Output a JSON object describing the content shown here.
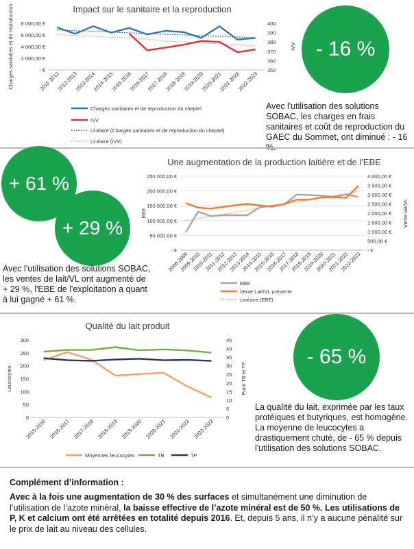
{
  "colors": {
    "green": "#1aa24f",
    "blue": "#2e75b6",
    "red": "#e03131",
    "grey": "#a6a6a6",
    "orange": "#ed7d31",
    "lightgreen": "#70ad47",
    "navy": "#1f3864"
  },
  "section1": {
    "bubble": "- 16 %",
    "text": "Avec l'utilisation des solutions SOBAC, les charges en frais sanitaires et coût de reproduction du GAEC du Sommet, ont diminué : - 16 %."
  },
  "section2": {
    "bubble1": "+ 61 %",
    "bubble2": "+ 29 %",
    "text": "Avec l'utilisation des solutions SOBAC, les ventes de lait/VL ont augmenté de + 29 %, l'EBE de l'exploitation a quant à lui gagné + 61 %."
  },
  "section3": {
    "bubble": "- 65 %",
    "text": "La qualité du lait, exprimée par les taux protéiques et butyriques, est homogène. La moyenne de leucocytes a drastiquement chuté, de - 65 % depuis l'utilisation des solutions SOBAC."
  },
  "footer": {
    "title": "Complément d’information :",
    "bold1": "Avec à la fois une augmentation de 30 % des surfaces",
    "text1": " et simultanément une diminution de l’utilisation de l’azote minéral, ",
    "bold2": "la baisse effective de l’azote minéral est de 50 %. Les utilisations de P, K et calcium ont été arrêtées en totalité depuis 2016",
    "text2": ". Et, depuis 5 ans, il n’y a aucune pénalité sur le prix de lait au niveau des cellules."
  },
  "chart_data": [
    {
      "type": "line",
      "title": "Impact sur le sanitaire et la reproduction",
      "ylabel": "Charges sanitaires et de reproduction",
      "y2label": "IVV",
      "categories": [
        "2011-2012",
        "2012-2013",
        "2013-2014",
        "2014-2015",
        "2015-2016",
        "2016-2017",
        "2017-2018",
        "2018-2019",
        "2019-2020",
        "2020-2021",
        "2021-2022",
        "2022-2023"
      ],
      "ylim": [
        0,
        8000
      ],
      "yticks": [
        "- €",
        "2 000,00 €",
        "4 000,00 €",
        "6 000,00 €",
        "8 000,00 €"
      ],
      "y2lim": [
        350,
        400
      ],
      "y2ticks": [
        "350",
        "360",
        "370",
        "380",
        "390",
        "400"
      ],
      "series": [
        {
          "name": "Charges sanitaires et de reproduction du cheptel",
          "axis": "left",
          "color": "#2e75b6",
          "values": [
            7300,
            6200,
            7500,
            6400,
            7200,
            6100,
            6700,
            6500,
            5500,
            7500,
            5200,
            5500
          ]
        },
        {
          "name": "IVV",
          "axis": "right",
          "color": "#e03131",
          "values": [
            null,
            null,
            null,
            null,
            389,
            371,
            374,
            377,
            381,
            380,
            369,
            372
          ]
        },
        {
          "name": "Linéaire (Charges sanitaires et de reproduction du cheptel)",
          "axis": "left",
          "color": "#1f3864",
          "dotted": true,
          "values": [
            6850,
            6730,
            6610,
            6490,
            6370,
            6250,
            6130,
            6010,
            5890,
            5770,
            5650,
            5530
          ]
        },
        {
          "name": "Linéaire (IVV)",
          "axis": "right",
          "color": "#e8896b",
          "dotted": true,
          "values": [
            388,
            387,
            386,
            385,
            384,
            383,
            381,
            380,
            379,
            378,
            377,
            376
          ]
        }
      ]
    },
    {
      "type": "line",
      "title": "Une augmentation de la production laitière et de l'EBE",
      "ylabel": "EBE",
      "y2label": "Vente lait/VL",
      "categories": [
        "2008-2009",
        "2009-2010",
        "2010-2011",
        "2011-2012",
        "2012-2013",
        "2013-2014",
        "2014-2015",
        "2015-2016",
        "2016-2017",
        "2017-2018",
        "2018-2019",
        "2019-2020",
        "2020-2021",
        "2021-2022",
        "2022-2023"
      ],
      "ylim": [
        0,
        250000
      ],
      "yticks": [
        "- €",
        "50 000,00 €",
        "100 000,00 €",
        "150 000,00 €",
        "200 000,00 €",
        "250 000,00 €"
      ],
      "y2lim": [
        0,
        4000
      ],
      "y2ticks": [
        "- €",
        "500,00 €",
        "1 000,00 €",
        "1 500,00 €",
        "2 000,00 €",
        "2 500,00 €",
        "3 000,00 €",
        "3 500,00 €",
        "4 000,00 €"
      ],
      "series": [
        {
          "name": "EBE",
          "axis": "left",
          "color": "#a6a6a6",
          "values": [
            60000,
            130000,
            115000,
            118000,
            118000,
            118000,
            145000,
            150000,
            155000,
            188000,
            186000,
            184000,
            180000,
            188000,
            180000
          ]
        },
        {
          "name": "Vente Lait/VL présente",
          "axis": "right",
          "color": "#ed7d31",
          "values": [
            2550,
            2300,
            2250,
            2330,
            2430,
            2500,
            2420,
            2350,
            2500,
            2730,
            2730,
            2850,
            2870,
            2830,
            3470
          ]
        },
        {
          "name": "Linéaire (EBE)",
          "axis": "left",
          "color": "#ed7d31",
          "dotted": true,
          "values": [
            100000,
            107000,
            114000,
            121000,
            128000,
            135000,
            142000,
            149000,
            156000,
            163000,
            170000,
            177000,
            184000,
            191000,
            198000
          ]
        }
      ]
    },
    {
      "type": "line",
      "title": "Qualité du lait produit",
      "ylabel": "Leucocytes",
      "y2label": "Point TB et TP",
      "categories": [
        "2015-2016",
        "2016-2017",
        "2017-2018",
        "2018-2019",
        "2019-2020",
        "2020-2021",
        "2021-2022",
        "2022-2023"
      ],
      "ylim": [
        0,
        300
      ],
      "yticks": [
        "0",
        "50",
        "100",
        "150",
        "200",
        "250",
        "300"
      ],
      "y2lim": [
        0,
        45
      ],
      "y2ticks": [
        "0",
        "5",
        "10",
        "15",
        "20",
        "25",
        "30",
        "35",
        "40",
        "45"
      ],
      "series": [
        {
          "name": "Moyennes leucocytes",
          "axis": "left",
          "color": "#f4a261",
          "values": [
            222,
            253,
            223,
            162,
            168,
            173,
            120,
            77
          ]
        },
        {
          "name": "TB",
          "axis": "right",
          "color": "#70ad47",
          "values": [
            38.2,
            39.2,
            39.2,
            40.8,
            39.0,
            39.5,
            38.9,
            37.6
          ]
        },
        {
          "name": "TP",
          "axis": "right",
          "color": "#1f3864",
          "values": [
            34.4,
            33.2,
            32.9,
            33.6,
            34.1,
            33.2,
            33.4,
            32.8
          ]
        }
      ]
    }
  ]
}
